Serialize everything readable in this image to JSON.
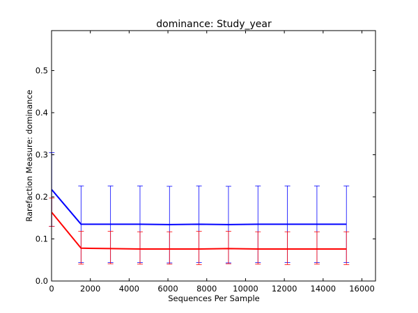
{
  "chart_data": {
    "type": "line",
    "title": "dominance: Study_year",
    "xlabel": "Sequences Per Sample",
    "ylabel": "Rarefaction Measure: dominance",
    "xlim": [
      0,
      16700
    ],
    "ylim": [
      0,
      0.595
    ],
    "xticks": [
      0,
      2000,
      4000,
      6000,
      8000,
      10000,
      12000,
      14000,
      16000
    ],
    "yticks": [
      0.0,
      0.1,
      0.2,
      0.3,
      0.4,
      0.5
    ],
    "xtick_labels": [
      "0",
      "2000",
      "4000",
      "6000",
      "8000",
      "10000",
      "12000",
      "14000",
      "16000"
    ],
    "ytick_labels": [
      "0.0",
      "0.1",
      "0.2",
      "0.3",
      "0.4",
      "0.5"
    ],
    "grid": false,
    "x": [
      10,
      1520,
      3040,
      4560,
      6080,
      7600,
      9120,
      10640,
      12160,
      13680,
      15200
    ],
    "series": [
      {
        "color": "#0000ff",
        "values": [
          0.217,
          0.135,
          0.135,
          0.135,
          0.134,
          0.135,
          0.134,
          0.135,
          0.135,
          0.135,
          0.135
        ],
        "err_low": [
          0.13,
          0.044,
          0.044,
          0.044,
          0.043,
          0.044,
          0.043,
          0.044,
          0.044,
          0.044,
          0.044
        ],
        "err_high": [
          0.305,
          0.226,
          0.226,
          0.226,
          0.225,
          0.226,
          0.225,
          0.226,
          0.226,
          0.226,
          0.226
        ]
      },
      {
        "color": "#ff0000",
        "values": [
          0.163,
          0.078,
          0.077,
          0.076,
          0.076,
          0.076,
          0.077,
          0.076,
          0.076,
          0.076,
          0.076
        ],
        "err_low": [
          0.13,
          0.04,
          0.041,
          0.04,
          0.04,
          0.039,
          0.041,
          0.04,
          0.039,
          0.04,
          0.039
        ],
        "err_high": [
          0.197,
          0.118,
          0.118,
          0.117,
          0.117,
          0.118,
          0.118,
          0.117,
          0.117,
          0.117,
          0.117
        ]
      }
    ]
  }
}
